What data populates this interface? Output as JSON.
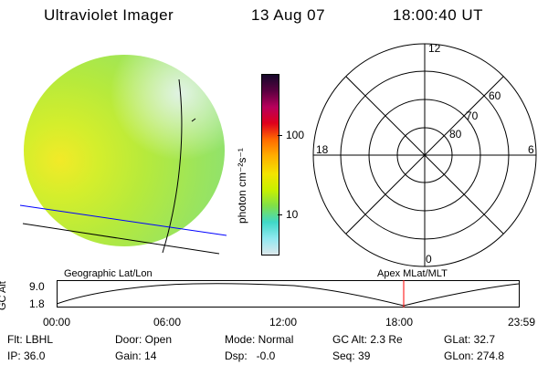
{
  "header": {
    "instrument": "Ultraviolet Imager",
    "date": "13 Aug 07",
    "time": "18:00:40 UT"
  },
  "colorbar": {
    "unit_label": "photon cm⁻²s⁻¹",
    "ticks": [
      "100",
      "10"
    ],
    "colors": [
      "#16082b",
      "#5a0040",
      "#b8005c",
      "#e0001c",
      "#ff6a00",
      "#ffae00",
      "#f4e400",
      "#c8f000",
      "#7fe04a",
      "#3fd8c8",
      "#90e8f0",
      "#dde8ec"
    ]
  },
  "polar": {
    "mlt_labels": [
      "12",
      "18",
      "6",
      "0"
    ],
    "lat_labels": [
      "60",
      "70",
      "80"
    ]
  },
  "map_labels": {
    "left": "Geographic Lat/Lon",
    "right": "Apex MLat/MLT"
  },
  "altitude_plot": {
    "y_label": "GC Alt",
    "y_ticks": [
      "9.0",
      "1.8"
    ],
    "x_ticks": [
      "00:00",
      "06:00",
      "12:00",
      "18:00",
      "23:59"
    ],
    "marker_color": "#ff0000"
  },
  "info": {
    "row1": {
      "flt": "Flt: LBHL",
      "door": "Door: Open",
      "mode": "Mode: Normal",
      "gcalt": "GC Alt: 2.3 Re",
      "glat": "GLat: 32.7"
    },
    "row2": {
      "ip": "IP: 36.0",
      "gain": "Gain: 14",
      "dsp": "Dsp:   -0.0",
      "seq": "Seq: 39",
      "glon": "GLon: 274.8"
    }
  }
}
